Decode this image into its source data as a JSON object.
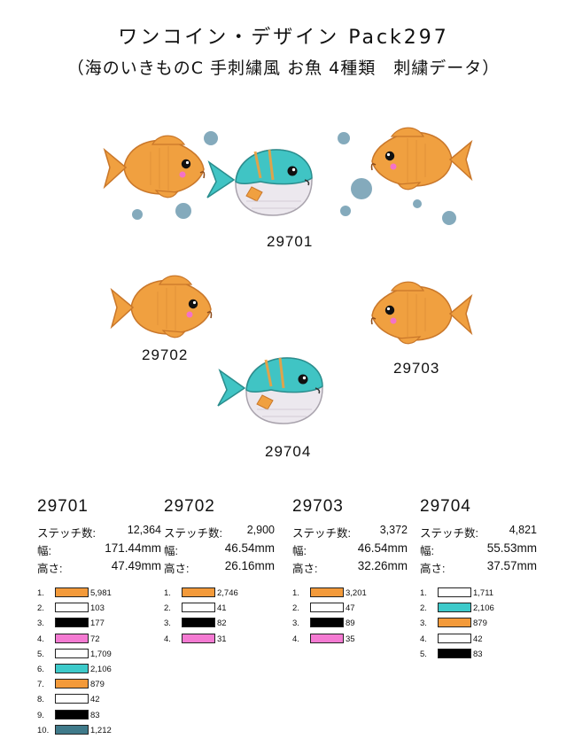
{
  "header": {
    "title": "ワンコイン・デザイン Pack297",
    "subtitle": "（海のいきものC 手刺繍風 お魚 4種類　刺繍データ）"
  },
  "designs": [
    {
      "code": "29701",
      "stitches": "12,364",
      "width": "171.44mm",
      "height": "47.49mm",
      "colors": [
        {
          "num": "1.",
          "hex": "#f39a3a",
          "count": "5,981"
        },
        {
          "num": "2.",
          "hex": "#ffffff",
          "count": "103"
        },
        {
          "num": "3.",
          "hex": "#000000",
          "count": "177"
        },
        {
          "num": "4.",
          "hex": "#f47ad2",
          "count": "72"
        },
        {
          "num": "5.",
          "hex": "#ffffff",
          "count": "1,709"
        },
        {
          "num": "6.",
          "hex": "#3dcaca",
          "count": "2,106"
        },
        {
          "num": "7.",
          "hex": "#f39a3a",
          "count": "879"
        },
        {
          "num": "8.",
          "hex": "#ffffff",
          "count": "42"
        },
        {
          "num": "9.",
          "hex": "#000000",
          "count": "83"
        },
        {
          "num": "10.",
          "hex": "#3f7a8a",
          "count": "1,212"
        }
      ]
    },
    {
      "code": "29702",
      "stitches": "2,900",
      "width": "46.54mm",
      "height": "26.16mm",
      "colors": [
        {
          "num": "1.",
          "hex": "#f39a3a",
          "count": "2,746"
        },
        {
          "num": "2.",
          "hex": "#ffffff",
          "count": "41"
        },
        {
          "num": "3.",
          "hex": "#000000",
          "count": "82"
        },
        {
          "num": "4.",
          "hex": "#f47ad2",
          "count": "31"
        }
      ]
    },
    {
      "code": "29703",
      "stitches": "3,372",
      "width": "46.54mm",
      "height": "32.26mm",
      "colors": [
        {
          "num": "1.",
          "hex": "#f39a3a",
          "count": "3,201"
        },
        {
          "num": "2.",
          "hex": "#ffffff",
          "count": "47"
        },
        {
          "num": "3.",
          "hex": "#000000",
          "count": "89"
        },
        {
          "num": "4.",
          "hex": "#f47ad2",
          "count": "35"
        }
      ]
    },
    {
      "code": "29704",
      "stitches": "4,821",
      "width": "55.53mm",
      "height": "37.57mm",
      "colors": [
        {
          "num": "1.",
          "hex": "#ffffff",
          "count": "1,711"
        },
        {
          "num": "2.",
          "hex": "#3dcaca",
          "count": "2,106"
        },
        {
          "num": "3.",
          "hex": "#f39a3a",
          "count": "879"
        },
        {
          "num": "4.",
          "hex": "#ffffff",
          "count": "42"
        },
        {
          "num": "5.",
          "hex": "#000000",
          "count": "83"
        }
      ]
    }
  ],
  "labels": {
    "stitches": "ステッチ数:",
    "width": "幅:",
    "height": "高さ:"
  }
}
